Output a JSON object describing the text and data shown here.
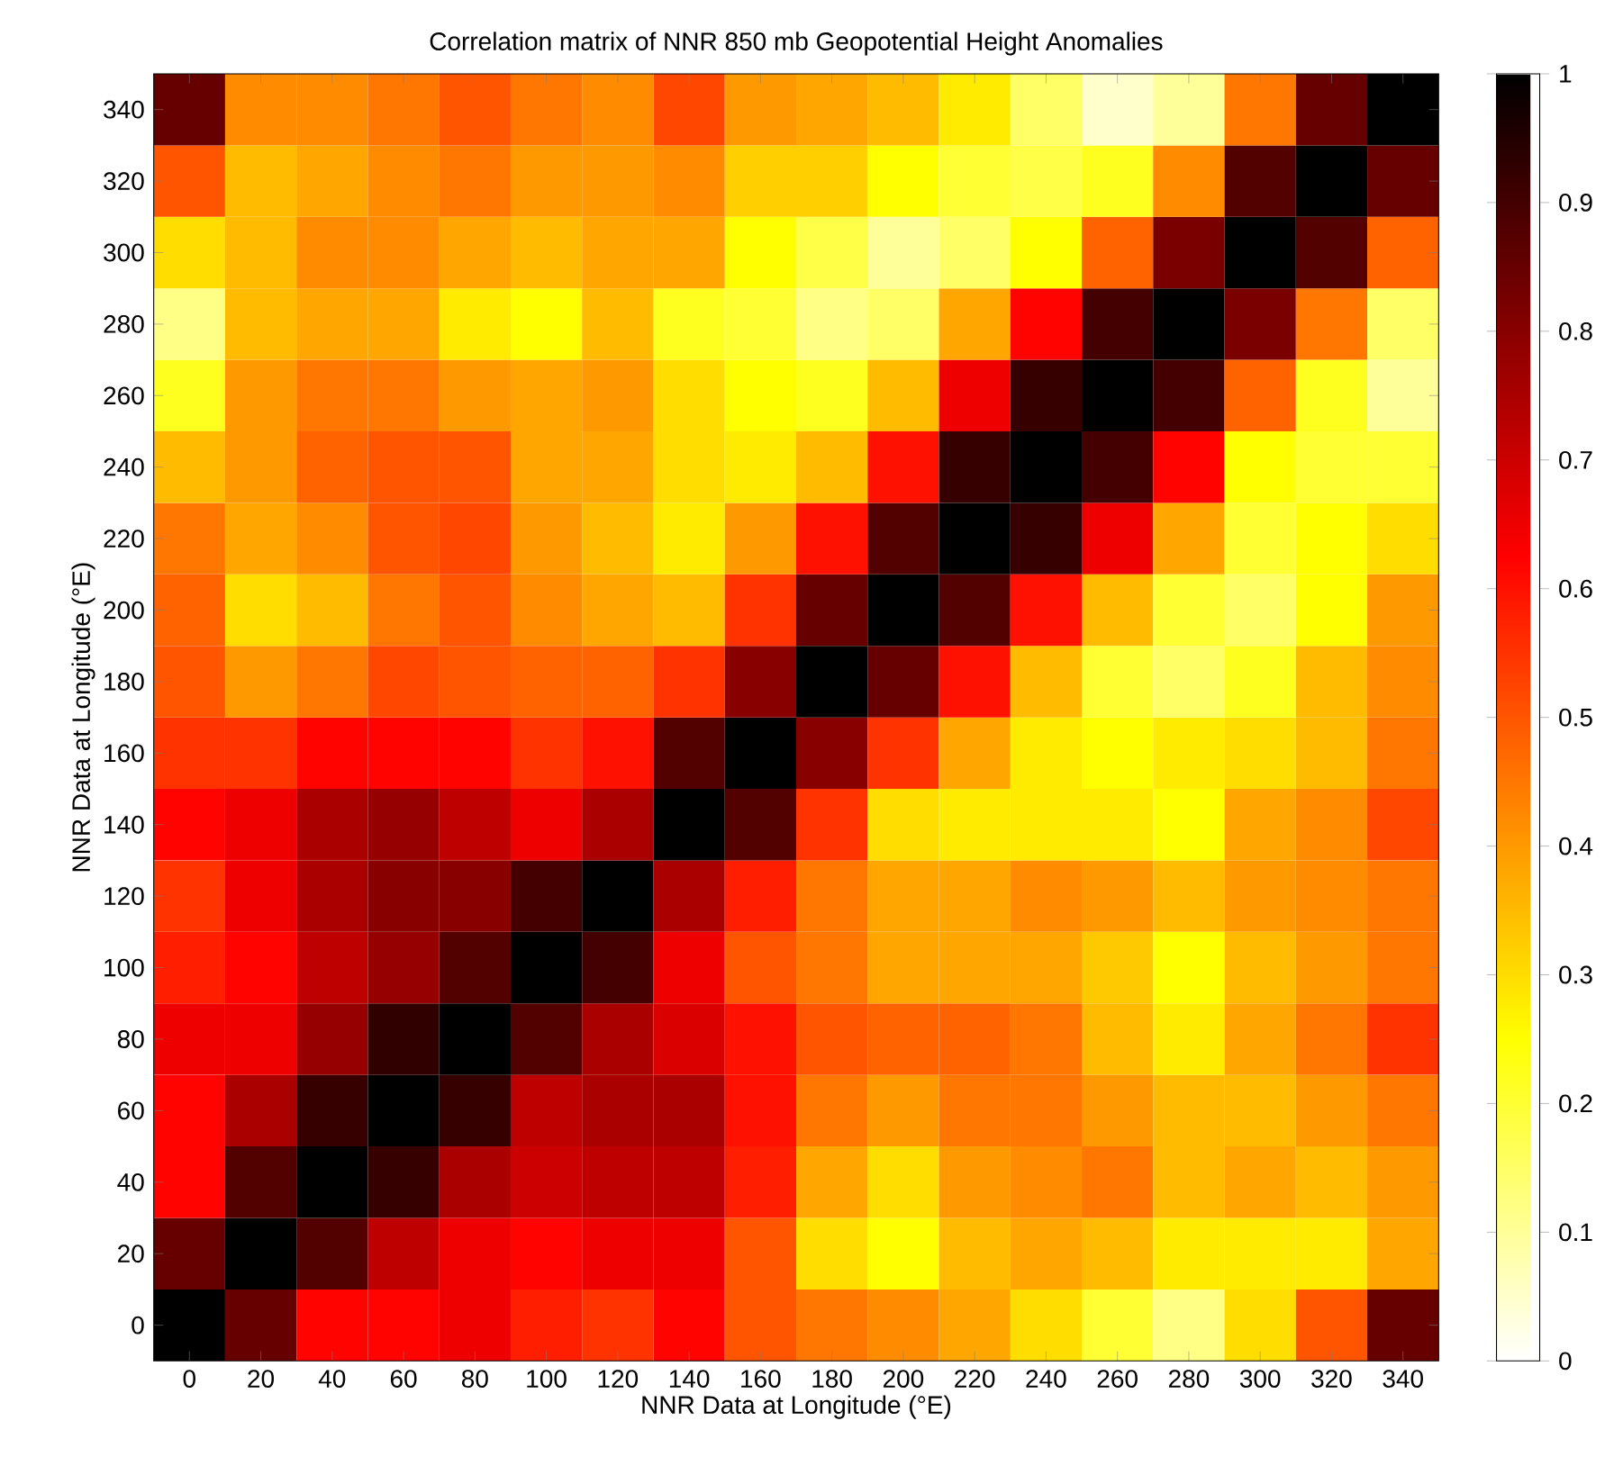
{
  "chart_data": {
    "type": "heatmap",
    "title": "Correlation matrix of NNR 850 mb Geopotential Height Anomalies",
    "xlabel": "NNR Data at Longitude (°E)",
    "ylabel": "NNR Data at Longitude (°E)",
    "categories": [
      "0",
      "20",
      "40",
      "60",
      "80",
      "100",
      "120",
      "140",
      "160",
      "180",
      "200",
      "220",
      "240",
      "260",
      "280",
      "300",
      "320",
      "340"
    ],
    "y_categories": [
      "340",
      "320",
      "300",
      "280",
      "260",
      "240",
      "220",
      "200",
      "180",
      "160",
      "140",
      "120",
      "100",
      "80",
      "60",
      "40",
      "20",
      "0"
    ],
    "cells": [
      [
        0.85,
        0.42,
        0.42,
        0.45,
        0.5,
        0.45,
        0.42,
        0.52,
        0.4,
        0.38,
        0.35,
        0.28,
        0.15,
        0.05,
        0.1,
        0.45,
        0.85,
        1.0
      ],
      [
        0.5,
        0.35,
        0.38,
        0.42,
        0.45,
        0.4,
        0.4,
        0.42,
        0.32,
        0.32,
        0.25,
        0.2,
        0.18,
        0.22,
        0.42,
        0.88,
        1.0,
        0.85
      ],
      [
        0.3,
        0.35,
        0.42,
        0.42,
        0.38,
        0.35,
        0.38,
        0.38,
        0.25,
        0.18,
        0.1,
        0.15,
        0.25,
        0.48,
        0.82,
        1.0,
        0.88,
        0.48
      ],
      [
        0.12,
        0.35,
        0.38,
        0.38,
        0.28,
        0.25,
        0.35,
        0.22,
        0.2,
        0.12,
        0.15,
        0.38,
        0.62,
        0.9,
        1.0,
        0.82,
        0.45,
        0.15
      ],
      [
        0.22,
        0.4,
        0.45,
        0.45,
        0.4,
        0.38,
        0.4,
        0.3,
        0.25,
        0.22,
        0.35,
        0.65,
        0.92,
        1.0,
        0.9,
        0.48,
        0.22,
        0.1
      ],
      [
        0.35,
        0.4,
        0.48,
        0.5,
        0.5,
        0.38,
        0.38,
        0.3,
        0.28,
        0.35,
        0.6,
        0.92,
        1.0,
        0.9,
        0.62,
        0.25,
        0.2,
        0.2
      ],
      [
        0.45,
        0.38,
        0.42,
        0.5,
        0.52,
        0.4,
        0.35,
        0.28,
        0.4,
        0.6,
        0.88,
        1.0,
        0.92,
        0.65,
        0.38,
        0.2,
        0.25,
        0.3
      ],
      [
        0.48,
        0.3,
        0.35,
        0.45,
        0.5,
        0.42,
        0.38,
        0.35,
        0.55,
        0.85,
        1.0,
        0.88,
        0.6,
        0.35,
        0.2,
        0.15,
        0.25,
        0.4
      ],
      [
        0.5,
        0.4,
        0.45,
        0.52,
        0.5,
        0.48,
        0.48,
        0.55,
        0.8,
        1.0,
        0.85,
        0.6,
        0.35,
        0.2,
        0.15,
        0.22,
        0.35,
        0.42
      ],
      [
        0.55,
        0.55,
        0.62,
        0.62,
        0.62,
        0.55,
        0.6,
        0.88,
        1.0,
        0.8,
        0.55,
        0.38,
        0.28,
        0.25,
        0.28,
        0.3,
        0.35,
        0.45
      ],
      [
        0.62,
        0.65,
        0.75,
        0.78,
        0.72,
        0.65,
        0.75,
        1.0,
        0.88,
        0.55,
        0.3,
        0.28,
        0.28,
        0.28,
        0.25,
        0.38,
        0.42,
        0.52
      ],
      [
        0.55,
        0.65,
        0.75,
        0.8,
        0.8,
        0.9,
        1.0,
        0.75,
        0.58,
        0.45,
        0.38,
        0.38,
        0.42,
        0.4,
        0.35,
        0.4,
        0.42,
        0.45
      ],
      [
        0.58,
        0.62,
        0.72,
        0.78,
        0.88,
        1.0,
        0.9,
        0.65,
        0.5,
        0.45,
        0.38,
        0.38,
        0.38,
        0.33,
        0.25,
        0.35,
        0.4,
        0.45
      ],
      [
        0.65,
        0.65,
        0.78,
        0.93,
        1.0,
        0.88,
        0.75,
        0.68,
        0.6,
        0.5,
        0.48,
        0.48,
        0.45,
        0.35,
        0.28,
        0.38,
        0.45,
        0.55
      ],
      [
        0.62,
        0.75,
        0.92,
        1.0,
        0.92,
        0.72,
        0.75,
        0.75,
        0.6,
        0.45,
        0.4,
        0.45,
        0.45,
        0.4,
        0.35,
        0.35,
        0.4,
        0.45
      ],
      [
        0.62,
        0.88,
        1.0,
        0.92,
        0.75,
        0.7,
        0.72,
        0.72,
        0.58,
        0.38,
        0.3,
        0.4,
        0.42,
        0.45,
        0.35,
        0.38,
        0.35,
        0.4
      ],
      [
        0.85,
        1.0,
        0.88,
        0.72,
        0.65,
        0.62,
        0.65,
        0.65,
        0.5,
        0.3,
        0.25,
        0.35,
        0.38,
        0.35,
        0.28,
        0.28,
        0.28,
        0.38
      ],
      [
        1.0,
        0.85,
        0.62,
        0.62,
        0.65,
        0.58,
        0.55,
        0.62,
        0.5,
        0.45,
        0.42,
        0.38,
        0.3,
        0.2,
        0.12,
        0.3,
        0.5,
        0.85
      ]
    ],
    "clim": [
      0,
      1
    ],
    "cticks": [
      0,
      0.1,
      0.2,
      0.3,
      0.4,
      0.5,
      0.6,
      0.7,
      0.8,
      0.9,
      1
    ]
  }
}
